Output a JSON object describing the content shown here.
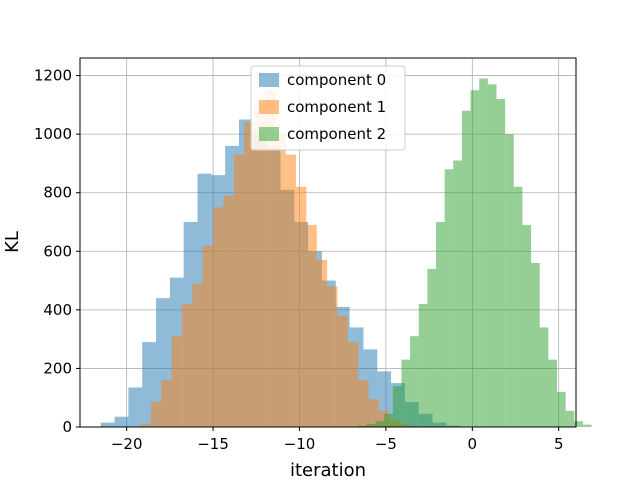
{
  "chart_data": {
    "type": "histogram",
    "title": "",
    "xlabel": "iteration",
    "ylabel": "KL",
    "xlim": [
      -22.7,
      6.0
    ],
    "ylim": [
      0,
      1260
    ],
    "xticks": [
      -20,
      -15,
      -10,
      -5,
      0,
      5
    ],
    "xtick_labels": [
      "−20",
      "−15",
      "−10",
      "−5",
      "0",
      "5"
    ],
    "yticks": [
      0,
      200,
      400,
      600,
      800,
      1000,
      1200
    ],
    "ytick_labels": [
      "0",
      "200",
      "400",
      "600",
      "800",
      "1000",
      "1200"
    ],
    "grid": true,
    "legend_position": "upper center",
    "series": [
      {
        "name": "component 0",
        "color": "#1f77b4",
        "alpha": 0.5,
        "bin_start": -21.5,
        "bin_width": 0.8,
        "values": [
          15,
          35,
          135,
          290,
          440,
          510,
          700,
          865,
          860,
          960,
          1050,
          1000,
          955,
          810,
          700,
          600,
          500,
          410,
          340,
          265,
          190,
          150,
          85,
          45,
          15,
          5
        ]
      },
      {
        "name": "component 1",
        "color": "#ff7f0e",
        "alpha": 0.5,
        "bin_start": -19.2,
        "bin_width": 0.6,
        "values": [
          10,
          85,
          160,
          310,
          420,
          490,
          620,
          750,
          790,
          930,
          1040,
          1100,
          1150,
          1000,
          930,
          820,
          690,
          570,
          480,
          380,
          290,
          160,
          95,
          55,
          25,
          10
        ]
      },
      {
        "name": "component 2",
        "color": "#2ca02c",
        "alpha": 0.5,
        "bin_start": -6.6,
        "bin_width": 0.5,
        "values": [
          5,
          10,
          20,
          45,
          140,
          230,
          310,
          420,
          540,
          700,
          880,
          910,
          1080,
          1150,
          1190,
          1170,
          1120,
          1000,
          820,
          690,
          560,
          340,
          230,
          120,
          55,
          20,
          8
        ]
      }
    ]
  }
}
